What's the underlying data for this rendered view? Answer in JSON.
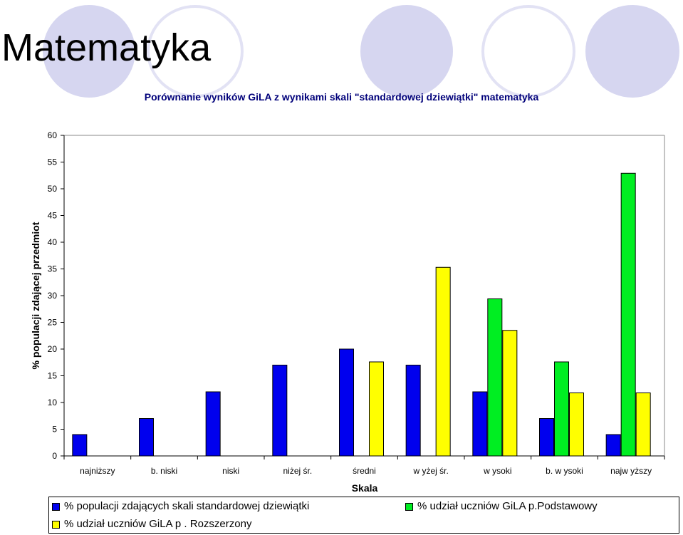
{
  "page_title": "Matematyka",
  "decorations": {
    "fill_color": "#d6d6f0",
    "ring_color": "#e2e2f4"
  },
  "chart_data": {
    "type": "bar",
    "title": "Porównanie wyników GiLA z wynikami skali \"standardowej dziewiątki\" matematyka",
    "xlabel": "Skala",
    "ylabel": "% populacji zdającej przedmiot",
    "ylim": [
      0,
      60
    ],
    "yticks": [
      0,
      5,
      10,
      15,
      20,
      25,
      30,
      35,
      40,
      45,
      50,
      55,
      60
    ],
    "grid": false,
    "legend_position": "bottom",
    "categories": [
      "najniższy",
      "b. niski",
      "niski",
      "niżej śr.",
      "średni",
      "w yżej śr.",
      "w ysoki",
      "b. w ysoki",
      "najw yższy"
    ],
    "series": [
      {
        "name": "% populacji zdających skali standardowej dziewiątki",
        "color": "#0000ee",
        "values": [
          4,
          7,
          12,
          17,
          20,
          17,
          12,
          7,
          4
        ]
      },
      {
        "name": "% udział uczniów GiLA p.Podstawowy",
        "color": "#00ee22",
        "values": [
          null,
          null,
          null,
          null,
          null,
          null,
          29.4,
          17.6,
          52.9
        ]
      },
      {
        "name": "% udział uczniów GiLA p . Rozszerzony",
        "color": "#ffff00",
        "values": [
          null,
          null,
          null,
          null,
          17.6,
          35.3,
          23.5,
          11.8,
          11.8
        ]
      }
    ]
  }
}
